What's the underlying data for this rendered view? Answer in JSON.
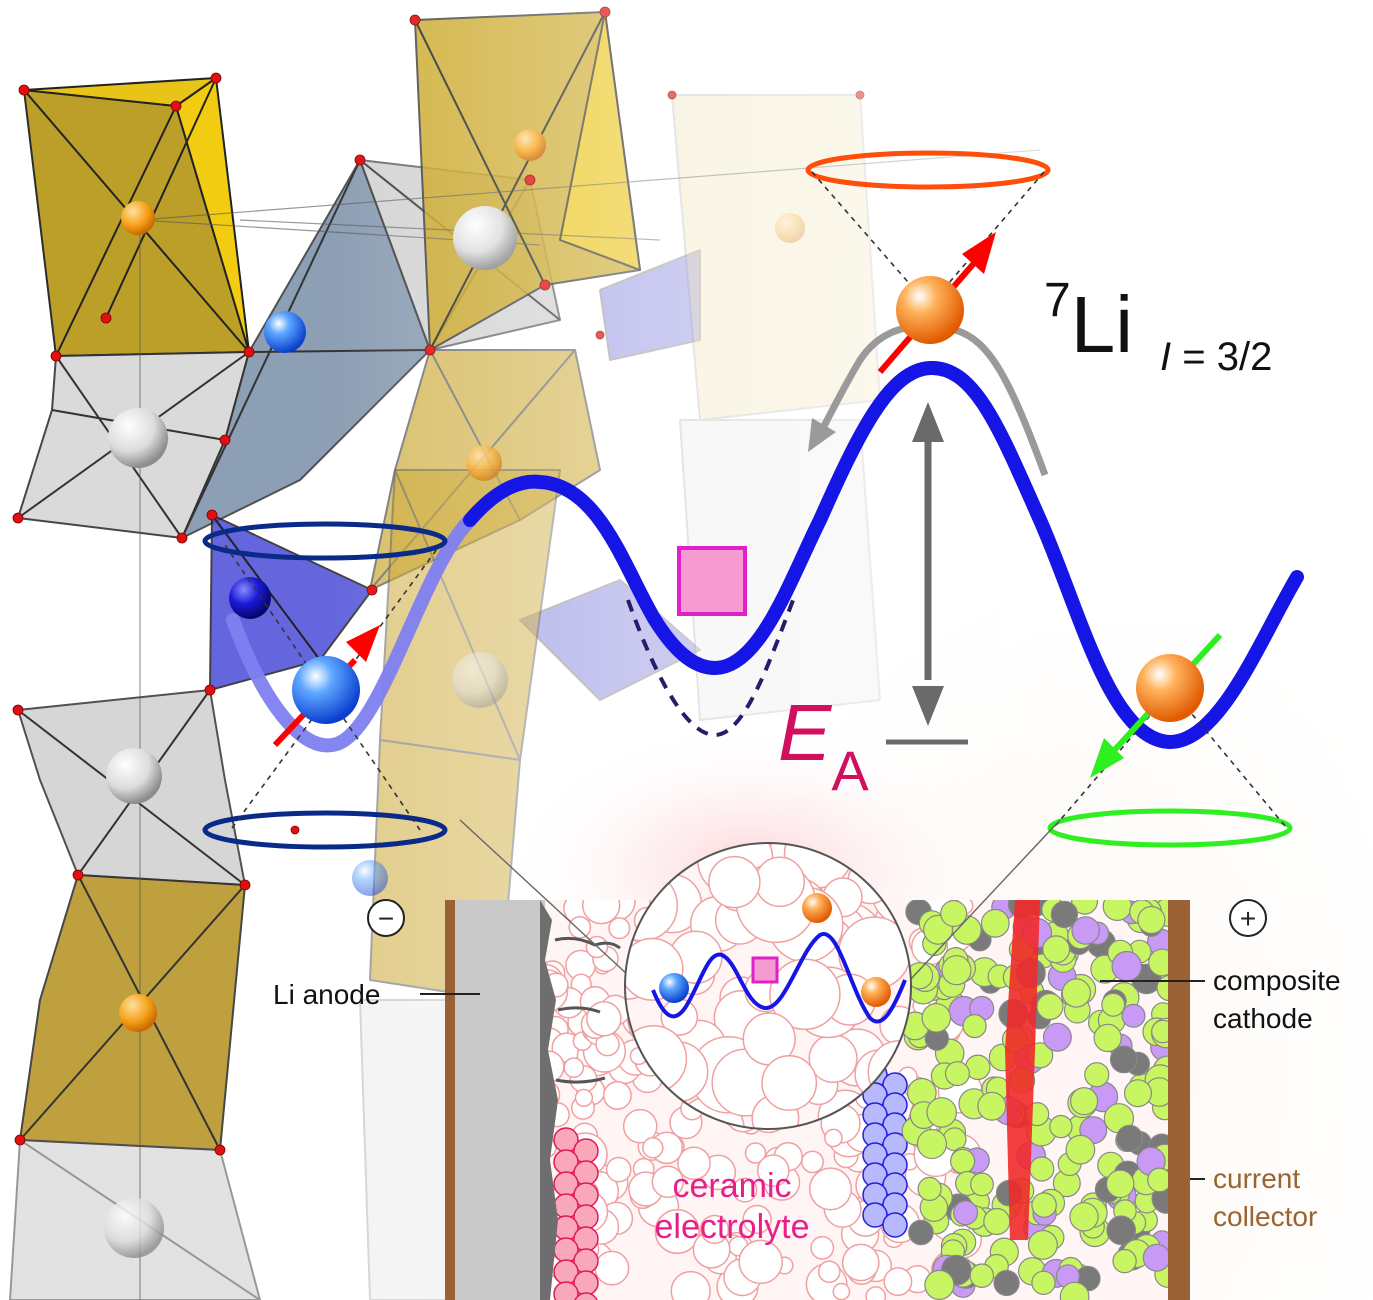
{
  "figure": {
    "isotope_mass": "7",
    "isotope_symbol": "Li",
    "spin_label": "I",
    "spin_value": " = 3/2",
    "activation_symbol": "E",
    "activation_subscript": "A"
  },
  "cell": {
    "minus_symbol": "−",
    "plus_symbol": "+",
    "anode_label": "Li anode",
    "cathode_label_line1": "composite",
    "cathode_label_line2": "cathode",
    "electrolyte_label_line1": "ceramic",
    "electrolyte_label_line2": "electrolyte",
    "collector_label_line1": "current",
    "collector_label_line2": "collector"
  },
  "colors": {
    "energy_curve": "#1515e6",
    "vacancy": "#f59bd2",
    "activation_label": "#d0105e",
    "electrolyte_label": "#e81e8a",
    "collector_label": "#9a6430",
    "current_collector": "#9a6234",
    "anode": "#c9c9c9",
    "cathode_particles": "#c8f562",
    "octahedra_yellow": "#c9a21a",
    "octahedra_blue": "#4a4ad2"
  }
}
